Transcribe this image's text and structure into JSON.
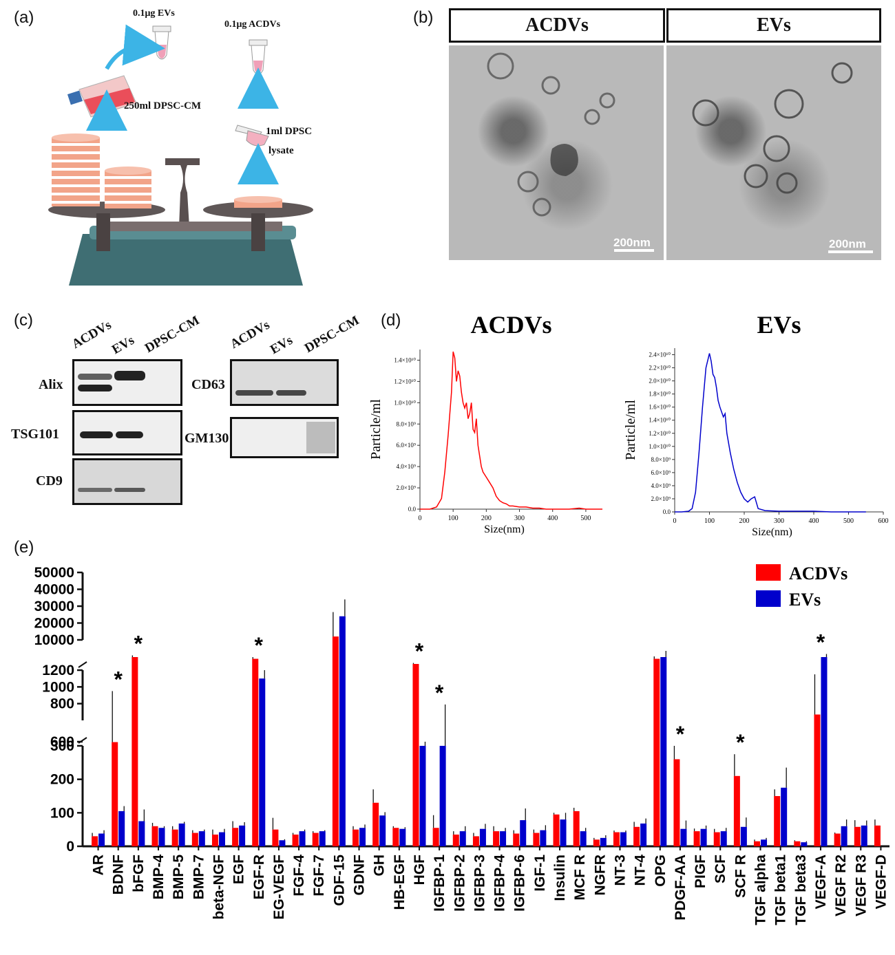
{
  "panels": {
    "a": {
      "letter": "(a)",
      "labels": {
        "evs": "0.1μg EVs",
        "acdvs": "0.1μg ACDVs",
        "cm": "250ml DPSC-CM",
        "lysate_1": "1ml DPSC",
        "lysate_2": "lysate"
      }
    },
    "b": {
      "letter": "(b)",
      "headers": [
        "ACDVs",
        "EVs"
      ],
      "scale_bar": "200nm"
    },
    "c": {
      "letter": "(c)",
      "lanes": [
        "ACDVs",
        "EVs",
        "DPSC-CM"
      ],
      "blots_left": [
        "Alix",
        "TSG101",
        "CD9"
      ],
      "blots_right": [
        "CD63",
        "GM130"
      ]
    },
    "d": {
      "letter": "(d)"
    },
    "e": {
      "letter": "(e)"
    }
  },
  "colors": {
    "acdvs": "#ff0000",
    "evs": "#0000cc"
  },
  "chart_data": [
    {
      "type": "line",
      "title": "ACDVs",
      "xlabel": "Size(nm)",
      "ylabel": "Particle/ml",
      "xlim": [
        0,
        550
      ],
      "ylim": [
        0,
        15000000000.0
      ],
      "xticks": [
        "0",
        "100",
        "200",
        "300",
        "400",
        "500"
      ],
      "yticks": [
        "0.0",
        "2.0×10⁹",
        "4.0×10⁹",
        "6.0×10⁹",
        "8.0×10⁹",
        "1.0×10¹⁰",
        "1.2×10¹⁰",
        "1.4×10¹⁰"
      ],
      "color": "#ff0000",
      "x": [
        0,
        30,
        50,
        65,
        75,
        85,
        95,
        100,
        105,
        110,
        115,
        120,
        125,
        130,
        135,
        140,
        145,
        150,
        155,
        160,
        165,
        170,
        175,
        180,
        185,
        190,
        200,
        210,
        220,
        230,
        240,
        250,
        260,
        270,
        280,
        300,
        320,
        340,
        360,
        380,
        400,
        450,
        480,
        500,
        520,
        550
      ],
      "y": [
        0,
        0,
        200000000.0,
        1000000000.0,
        3500000000.0,
        7000000000.0,
        11000000000.0,
        14800000000.0,
        14200000000.0,
        12000000000.0,
        13000000000.0,
        12500000000.0,
        11000000000.0,
        10000000000.0,
        9500000000.0,
        10000000000.0,
        8500000000.0,
        9000000000.0,
        10000000000.0,
        7500000000.0,
        7200000000.0,
        8500000000.0,
        6000000000.0,
        5000000000.0,
        4000000000.0,
        3500000000.0,
        3000000000.0,
        2500000000.0,
        2000000000.0,
        1200000000.0,
        800000000.0,
        600000000.0,
        500000000.0,
        300000000.0,
        300000000.0,
        200000000.0,
        200000000.0,
        100000000.0,
        100000000.0,
        0,
        0,
        0,
        100000000.0,
        0,
        0,
        0
      ]
    },
    {
      "type": "line",
      "title": "EVs",
      "xlabel": "Size(nm)",
      "ylabel": "Particle/ml",
      "xlim": [
        0,
        600
      ],
      "ylim": [
        0,
        25000000000.0
      ],
      "xticks": [
        "0",
        "100",
        "200",
        "300",
        "400",
        "500",
        "600"
      ],
      "yticks": [
        "0.0",
        "2.0×10⁹",
        "4.0×10⁹",
        "6.0×10⁹",
        "8.0×10⁹",
        "1.0×10¹⁰",
        "1.2×10¹⁰",
        "1.4×10¹⁰",
        "1.6×10¹⁰",
        "1.8×10¹⁰",
        "2.0×10¹⁰",
        "2.2×10¹⁰",
        "2.4×10¹⁰"
      ],
      "color": "#0000cc",
      "x": [
        0,
        20,
        40,
        50,
        60,
        70,
        80,
        90,
        100,
        105,
        110,
        115,
        120,
        125,
        130,
        140,
        145,
        150,
        160,
        170,
        180,
        190,
        200,
        210,
        220,
        230,
        240,
        260,
        300,
        350,
        400,
        450,
        500,
        550
      ],
      "y": [
        0,
        0,
        100000000.0,
        500000000.0,
        3000000000.0,
        9000000000.0,
        16000000000.0,
        22000000000.0,
        24200000000.0,
        23000000000.0,
        21000000000.0,
        20500000000.0,
        19000000000.0,
        17000000000.0,
        16000000000.0,
        14500000000.0,
        15000000000.0,
        12000000000.0,
        9000000000.0,
        6500000000.0,
        4500000000.0,
        3000000000.0,
        2000000000.0,
        1500000000.0,
        2000000000.0,
        2300000000.0,
        500000000.0,
        200000000.0,
        100000000.0,
        100000000.0,
        100000000.0,
        0,
        0,
        0
      ]
    },
    {
      "type": "bar",
      "title": "",
      "xlabel": "",
      "ylabel": "",
      "broken_axis": true,
      "segments": [
        {
          "range": [
            0,
            300
          ],
          "ticks": [
            "0",
            "100",
            "200",
            "300"
          ]
        },
        {
          "range": [
            600,
            1200
          ],
          "ticks": [
            "600",
            "800",
            "1000",
            "1200"
          ]
        },
        {
          "range": [
            10000,
            50000
          ],
          "ticks": [
            "10000",
            "20000",
            "30000",
            "40000",
            "50000"
          ]
        }
      ],
      "legend_position": "top-right",
      "categories": [
        "AR",
        "BDNF",
        "bFGF",
        "BMP-4",
        "BMP-5",
        "BMP-7",
        "beta-NGF",
        "EGF",
        "EGF-R",
        "EG-VEGF",
        "FGF-4",
        "FGF-7",
        "GDF-15",
        "GDNF",
        "GH",
        "HB-EGF",
        "HGF",
        "IGFBP-1",
        "IGFBP-2",
        "IGFBP-3",
        "IGFBP-4",
        "IGFBP-6",
        "IGF-1",
        "Insulin",
        "MCF R",
        "NGFR",
        "NT-3",
        "NT-4",
        "OPG",
        "PDGF-AA",
        "PIGF",
        "SCF",
        "SCF R",
        "TGF alpha",
        "TGF beta1",
        "TGF beta3",
        "VEGF-A",
        "VEGF R2",
        "VEGF R3",
        "VEGF-D"
      ],
      "significant": [
        "BDNF",
        "bFGF",
        "EGF-R",
        "HGF",
        "IGFBP-1",
        "PDGF-AA",
        "SCF R",
        "VEGF-A"
      ],
      "significance_mark": "*",
      "series": [
        {
          "name": "ACDVs",
          "color": "#ff0000",
          "values": [
            30,
            570,
            5000,
            60,
            50,
            40,
            35,
            55,
            4500,
            50,
            35,
            40,
            12000,
            50,
            130,
            55,
            3000,
            55,
            35,
            30,
            45,
            38,
            40,
            95,
            105,
            20,
            42,
            58,
            4500,
            260,
            45,
            42,
            210,
            15,
            150,
            15,
            670,
            38,
            58,
            62
          ],
          "errors": [
            10,
            380,
            500,
            10,
            10,
            8,
            15,
            20,
            500,
            35,
            5,
            5,
            14500,
            10,
            40,
            5,
            300,
            38,
            10,
            10,
            15,
            10,
            10,
            5,
            10,
            5,
            5,
            15,
            700,
            40,
            8,
            10,
            65,
            5,
            20,
            3,
            480,
            3,
            20,
            18
          ]
        },
        {
          "name": "EVs",
          "color": "#0000cc",
          "values": [
            38,
            105,
            75,
            55,
            68,
            45,
            42,
            62,
            1100,
            18,
            45,
            45,
            24000,
            55,
            92,
            52,
            300,
            300,
            45,
            52,
            45,
            78,
            48,
            80,
            45,
            25,
            42,
            68,
            5000,
            52,
            52,
            45,
            58,
            20,
            175,
            12,
            5000,
            60,
            62,
            0
          ],
          "errors": [
            10,
            15,
            35,
            5,
            5,
            5,
            10,
            10,
            100,
            3,
            5,
            3,
            10000,
            10,
            10,
            5,
            300,
            490,
            15,
            15,
            10,
            35,
            15,
            20,
            10,
            8,
            5,
            15,
            1800,
            25,
            10,
            10,
            28,
            5,
            60,
            3,
            900,
            20,
            15,
            0
          ]
        }
      ]
    }
  ]
}
